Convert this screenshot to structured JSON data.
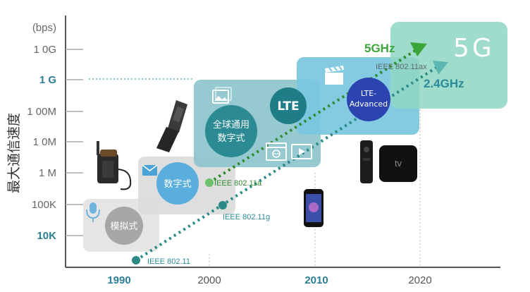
{
  "y_axis": {
    "unit": "(bps)",
    "title": "最大通信速度",
    "ticks": [
      "1 0G",
      "1 G",
      "1 00M",
      "1 0M",
      "1 M",
      "100K",
      "10K"
    ],
    "highlighted": [
      "1 G",
      "10K"
    ]
  },
  "x_axis": {
    "ticks": [
      "1990",
      "2000",
      "2010",
      "2020"
    ],
    "highlighted": [
      "1990",
      "2010"
    ]
  },
  "generations": {
    "g1_label": "模拟式",
    "g2_label": "数字式",
    "g3_label_line1": "全球通用",
    "g3_label_line2": "数字式",
    "g4_lte_label": "LTE",
    "g4_adv_label_line1": "LTE-",
    "g4_adv_label_line2": "Advanced",
    "g5_label": "5G"
  },
  "wifi_standards": [
    "IEEE 802.11",
    "IEEE 802.11g",
    "IEEE 802.11a",
    "IEEE 802.11ax"
  ],
  "frequency_labels": {
    "ghz5": "5GHz",
    "ghz24": "2.4GHz"
  },
  "colors": {
    "g1_box": "#e4e4e4",
    "g2_box": "#dcdcdc",
    "g3_box": "#8ec4cc",
    "g4_box": "#79c7df",
    "g5_box": "#8fd6c2",
    "teal_dots": "#2a8a86",
    "green_dots": "#3a9a3a",
    "ghz5_text": "#3aa63a",
    "ghz24_text": "#2a8a9a",
    "axis_highlight": "#2a7f92"
  },
  "icons": [
    "microphone-icon",
    "envelope-icon",
    "image-icon",
    "browser-icon",
    "video-icon",
    "clapperboard-icon",
    "car-phone",
    "flip-phone",
    "smartphone",
    "tv-box"
  ]
}
